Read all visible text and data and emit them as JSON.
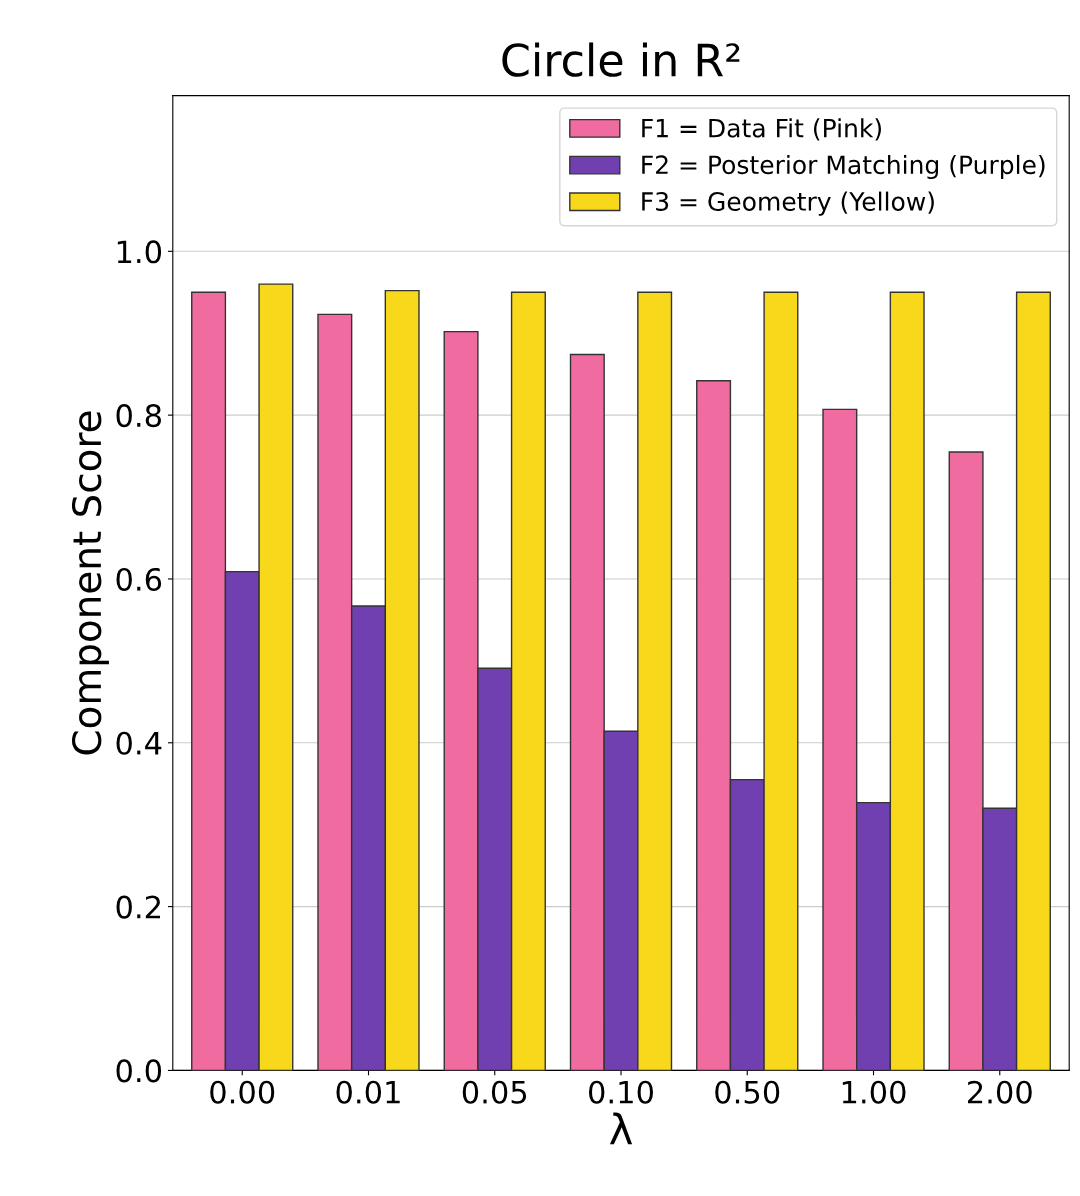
{
  "chart_data": {
    "type": "bar",
    "title": "Circle in R²",
    "xlabel": "λ",
    "ylabel": "Component Score",
    "categories": [
      "0.00",
      "0.01",
      "0.05",
      "0.10",
      "0.50",
      "1.00",
      "2.00"
    ],
    "series": [
      {
        "name": "F1 = Data Fit (Pink)",
        "color": "#f06ba0",
        "values": [
          0.95,
          0.923,
          0.902,
          0.874,
          0.842,
          0.807,
          0.755
        ]
      },
      {
        "name": "F2 = Posterior Matching (Purple)",
        "color": "#7040b0",
        "values": [
          0.609,
          0.567,
          0.491,
          0.414,
          0.355,
          0.327,
          0.32
        ]
      },
      {
        "name": "F3 = Geometry (Yellow)",
        "color": "#f8d81a",
        "values": [
          0.96,
          0.952,
          0.95,
          0.95,
          0.95,
          0.95,
          0.95
        ]
      }
    ],
    "ylim": [
      0,
      1.19
    ],
    "yticks": [
      {
        "value": 0,
        "label": "0.0"
      },
      0.2,
      0.4,
      0.6,
      0.8,
      {
        "value": 1,
        "label": "1.0"
      }
    ],
    "grid": "y",
    "legend": "top right"
  }
}
